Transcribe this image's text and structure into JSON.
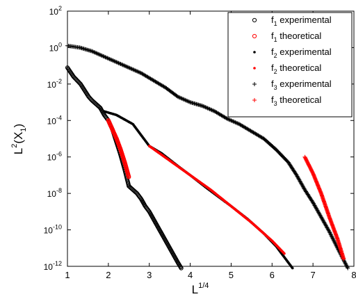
{
  "chart_data": {
    "type": "scatter",
    "title": "",
    "xlabel_base": "L",
    "xlabel_sup": "1/4",
    "ylabel_base": "L",
    "ylabel_sup": "2",
    "ylabel_paren": "(X",
    "ylabel_sub": "1",
    "ylabel_close": ")",
    "xlim": [
      1,
      8
    ],
    "ylim_exp": [
      -12,
      2
    ],
    "y_scale": "log10",
    "x_ticks": [
      "1",
      "2",
      "3",
      "4",
      "5",
      "6",
      "7",
      "8"
    ],
    "y_tick_base": "10",
    "y_tick_exps": [
      "2",
      "0",
      "-2",
      "-4",
      "-6",
      "-8",
      "-10",
      "-12"
    ],
    "grid": false,
    "legend_position": "top-right",
    "legend": [
      {
        "label": "f",
        "sub": "1",
        "rest": " experimental",
        "marker": "circle",
        "color": "#000000"
      },
      {
        "label": "f",
        "sub": "1",
        "rest": " theoretical",
        "marker": "circle",
        "color": "#ff0000"
      },
      {
        "label": "f",
        "sub": "2",
        "rest": " experimental",
        "marker": "dot",
        "color": "#000000"
      },
      {
        "label": "f",
        "sub": "2",
        "rest": " theoretical",
        "marker": "dot",
        "color": "#ff0000"
      },
      {
        "label": "f",
        "sub": "3",
        "rest": " experimental",
        "marker": "plus",
        "color": "#000000"
      },
      {
        "label": "f",
        "sub": "3",
        "rest": " theoretical",
        "marker": "plus",
        "color": "#ff0000"
      }
    ],
    "series": [
      {
        "name": "f1 experimental",
        "marker": "circle",
        "color": "#000000",
        "x": [
          1.0,
          1.15,
          1.32,
          1.52,
          1.6,
          1.7,
          1.8,
          1.9,
          2.0,
          2.1,
          2.2,
          2.3,
          2.4,
          2.5,
          2.6,
          2.7,
          2.8,
          2.9,
          3.0,
          3.1,
          3.2,
          3.3,
          3.4,
          3.5,
          3.6,
          3.7,
          3.78
        ],
        "logy": [
          -1.1,
          -1.6,
          -2.0,
          -2.7,
          -2.9,
          -3.1,
          -3.3,
          -3.7,
          -4.0,
          -4.5,
          -5.2,
          -5.9,
          -6.7,
          -7.6,
          -7.8,
          -8.0,
          -8.3,
          -8.7,
          -9.0,
          -9.4,
          -9.8,
          -10.2,
          -10.6,
          -11.0,
          -11.4,
          -11.8,
          -12.1
        ]
      },
      {
        "name": "f1 theoretical",
        "marker": "circle",
        "color": "#ff0000",
        "x": [
          2.0,
          2.1,
          2.2,
          2.3,
          2.4,
          2.5
        ],
        "logy": [
          -4.0,
          -4.5,
          -5.0,
          -5.6,
          -6.3,
          -7.1
        ]
      },
      {
        "name": "f2 experimental",
        "marker": "dot",
        "color": "#000000",
        "x": [
          1.9,
          2.2,
          2.6,
          2.8,
          3.0,
          3.3,
          3.7,
          4.0,
          4.4,
          4.7,
          5.0,
          5.4,
          5.8,
          6.1,
          6.4,
          6.5
        ],
        "logy": [
          -3.5,
          -3.7,
          -4.2,
          -4.8,
          -5.4,
          -5.8,
          -6.5,
          -7.0,
          -7.7,
          -8.2,
          -8.7,
          -9.4,
          -10.2,
          -10.9,
          -11.8,
          -12.1
        ]
      },
      {
        "name": "f2 theoretical",
        "marker": "dot",
        "color": "#ff0000",
        "x": [
          3.0,
          3.5,
          4.0,
          4.5,
          5.0,
          5.5,
          6.0,
          6.3
        ],
        "logy": [
          -5.4,
          -6.2,
          -7.0,
          -7.8,
          -8.7,
          -9.6,
          -10.6,
          -11.3
        ]
      },
      {
        "name": "f3 experimental",
        "marker": "plus",
        "color": "#000000",
        "x": [
          1.0,
          1.3,
          1.6,
          1.9,
          2.2,
          2.5,
          2.8,
          3.1,
          3.4,
          3.7,
          4.0,
          4.3,
          4.6,
          4.9,
          5.2,
          5.5,
          5.8,
          6.1,
          6.4,
          6.6,
          6.8,
          7.0,
          7.2,
          7.4,
          7.6,
          7.85
        ],
        "logy": [
          0.1,
          0.0,
          -0.2,
          -0.5,
          -0.8,
          -1.1,
          -1.4,
          -1.8,
          -2.2,
          -2.7,
          -3.0,
          -3.2,
          -3.5,
          -3.9,
          -4.2,
          -4.6,
          -5.0,
          -5.6,
          -6.3,
          -7.0,
          -7.8,
          -8.5,
          -9.3,
          -10.1,
          -11.0,
          -12.1
        ]
      },
      {
        "name": "f3 theoretical",
        "marker": "plus",
        "color": "#ff0000",
        "x": [
          6.8,
          7.0,
          7.2,
          7.4,
          7.6,
          7.75
        ],
        "logy": [
          -6.0,
          -6.9,
          -8.0,
          -9.3,
          -10.5,
          -11.6
        ]
      }
    ]
  }
}
